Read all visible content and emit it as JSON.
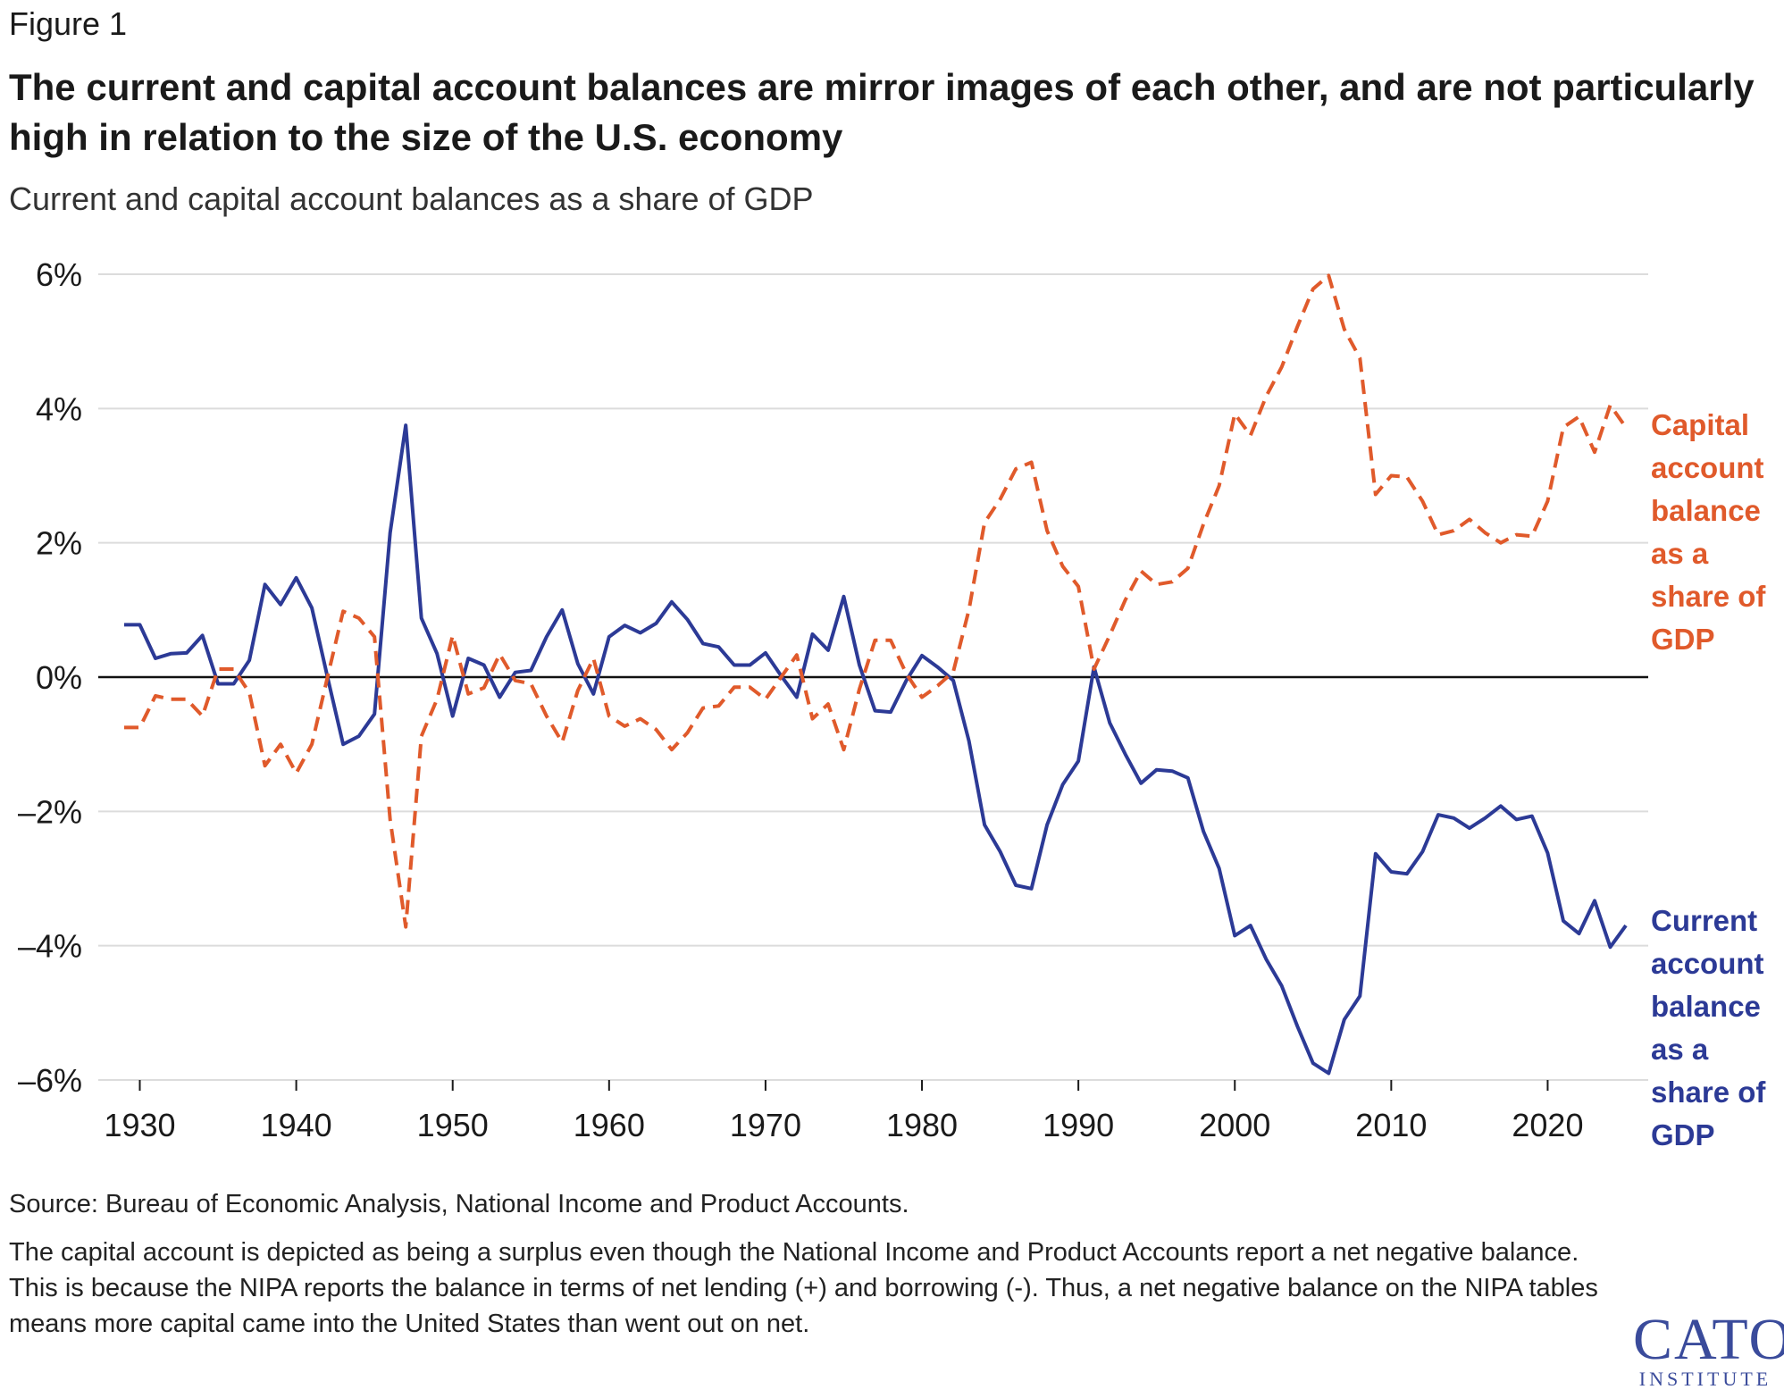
{
  "figure_label": "Figure 1",
  "title": "The current and capital account balances are mirror images of each other, and are not particularly high in relation to the size of the U.S. economy",
  "subtitle": "Current and capital account balances as a share of GDP",
  "series_labels": {
    "capital": "Capital account balance as a share of GDP",
    "current": "Current account balance as a share of GDP"
  },
  "source": "Source: Bureau of Economic Analysis, National Income and Product Accounts.",
  "note": "The capital account is depicted as being a surplus even though the National Income and Product Accounts report a net negative balance. This is because the NIPA reports the balance in terms of net lending (+) and borrowing (-). Thus, a net negative balance on the NIPA tables means more capital came into the United States than went out on net.",
  "logo": {
    "main": "CATO",
    "sub": "INSTITUTE"
  },
  "colors": {
    "capital": "#e05a2b",
    "current": "#2c3a96",
    "grid": "#dcdcdc",
    "zero": "#111111"
  },
  "chart_data": {
    "type": "line",
    "title": "The current and capital account balances are mirror images of each other, and are not particularly high in relation to the size of the U.S. economy",
    "subtitle": "Current and capital account balances as a share of GDP",
    "xlabel": "",
    "ylabel": "",
    "xlim": [
      1929,
      2025
    ],
    "ylim": [
      -6,
      6
    ],
    "x_ticks": [
      1930,
      1940,
      1950,
      1960,
      1970,
      1980,
      1990,
      2000,
      2010,
      2020
    ],
    "y_ticks": [
      6,
      4,
      2,
      0,
      -2,
      -4,
      -6
    ],
    "y_tick_labels": [
      "6%",
      "4%",
      "2%",
      "0%",
      "–2%",
      "–4%",
      "–6%"
    ],
    "grid": "horizontal",
    "series": [
      {
        "name": "Current account balance as a share of GDP",
        "key": "current",
        "style": "solid",
        "points": [
          [
            1929,
            0.78
          ],
          [
            1930,
            0.78
          ],
          [
            1931,
            0.28
          ],
          [
            1932,
            0.35
          ],
          [
            1933,
            0.36
          ],
          [
            1934,
            0.62
          ],
          [
            1935,
            -0.1
          ],
          [
            1936,
            -0.1
          ],
          [
            1937,
            0.25
          ],
          [
            1938,
            1.38
          ],
          [
            1939,
            1.08
          ],
          [
            1940,
            1.48
          ],
          [
            1941,
            1.03
          ],
          [
            1942,
            0.0
          ],
          [
            1943,
            -1.0
          ],
          [
            1944,
            -0.88
          ],
          [
            1945,
            -0.55
          ],
          [
            1946,
            2.15
          ],
          [
            1947,
            3.75
          ],
          [
            1948,
            0.88
          ],
          [
            1949,
            0.35
          ],
          [
            1950,
            -0.58
          ],
          [
            1951,
            0.28
          ],
          [
            1952,
            0.18
          ],
          [
            1953,
            -0.3
          ],
          [
            1954,
            0.07
          ],
          [
            1955,
            0.1
          ],
          [
            1956,
            0.6
          ],
          [
            1957,
            1.0
          ],
          [
            1958,
            0.2
          ],
          [
            1959,
            -0.25
          ],
          [
            1960,
            0.6
          ],
          [
            1961,
            0.77
          ],
          [
            1962,
            0.66
          ],
          [
            1963,
            0.8
          ],
          [
            1964,
            1.12
          ],
          [
            1965,
            0.86
          ],
          [
            1966,
            0.5
          ],
          [
            1967,
            0.45
          ],
          [
            1968,
            0.18
          ],
          [
            1969,
            0.18
          ],
          [
            1970,
            0.36
          ],
          [
            1971,
            0.02
          ],
          [
            1972,
            -0.3
          ],
          [
            1973,
            0.64
          ],
          [
            1974,
            0.4
          ],
          [
            1975,
            1.2
          ],
          [
            1976,
            0.18
          ],
          [
            1977,
            -0.5
          ],
          [
            1978,
            -0.52
          ],
          [
            1979,
            -0.05
          ],
          [
            1980,
            0.32
          ],
          [
            1981,
            0.15
          ],
          [
            1982,
            -0.05
          ],
          [
            1983,
            -0.95
          ],
          [
            1984,
            -2.2
          ],
          [
            1985,
            -2.6
          ],
          [
            1986,
            -3.1
          ],
          [
            1987,
            -3.15
          ],
          [
            1988,
            -2.2
          ],
          [
            1989,
            -1.6
          ],
          [
            1990,
            -1.25
          ],
          [
            1991,
            0.15
          ],
          [
            1992,
            -0.68
          ],
          [
            1993,
            -1.15
          ],
          [
            1994,
            -1.58
          ],
          [
            1995,
            -1.38
          ],
          [
            1996,
            -1.4
          ],
          [
            1997,
            -1.5
          ],
          [
            1998,
            -2.3
          ],
          [
            1999,
            -2.85
          ],
          [
            2000,
            -3.85
          ],
          [
            2001,
            -3.7
          ],
          [
            2002,
            -4.2
          ],
          [
            2003,
            -4.6
          ],
          [
            2004,
            -5.2
          ],
          [
            2005,
            -5.75
          ],
          [
            2006,
            -5.9
          ],
          [
            2007,
            -5.1
          ],
          [
            2008,
            -4.75
          ],
          [
            2009,
            -2.63
          ],
          [
            2010,
            -2.9
          ],
          [
            2011,
            -2.93
          ],
          [
            2012,
            -2.6
          ],
          [
            2013,
            -2.05
          ],
          [
            2014,
            -2.1
          ],
          [
            2015,
            -2.25
          ],
          [
            2016,
            -2.1
          ],
          [
            2017,
            -1.92
          ],
          [
            2018,
            -2.12
          ],
          [
            2019,
            -2.07
          ],
          [
            2020,
            -2.62
          ],
          [
            2021,
            -3.63
          ],
          [
            2022,
            -3.82
          ],
          [
            2023,
            -3.33
          ],
          [
            2024,
            -4.02
          ],
          [
            2025,
            -3.7
          ]
        ]
      },
      {
        "name": "Capital account balance as a share of GDP",
        "key": "capital",
        "style": "dashed",
        "points": [
          [
            1929,
            -0.75
          ],
          [
            1930,
            -0.75
          ],
          [
            1931,
            -0.28
          ],
          [
            1932,
            -0.33
          ],
          [
            1933,
            -0.33
          ],
          [
            1934,
            -0.58
          ],
          [
            1935,
            0.12
          ],
          [
            1936,
            0.12
          ],
          [
            1937,
            -0.23
          ],
          [
            1938,
            -1.32
          ],
          [
            1939,
            -1.0
          ],
          [
            1940,
            -1.43
          ],
          [
            1941,
            -1.0
          ],
          [
            1942,
            0.0
          ],
          [
            1943,
            0.98
          ],
          [
            1944,
            0.88
          ],
          [
            1945,
            0.6
          ],
          [
            1946,
            -2.12
          ],
          [
            1947,
            -3.72
          ],
          [
            1948,
            -0.88
          ],
          [
            1949,
            -0.33
          ],
          [
            1950,
            0.62
          ],
          [
            1951,
            -0.25
          ],
          [
            1952,
            -0.16
          ],
          [
            1953,
            0.34
          ],
          [
            1954,
            -0.05
          ],
          [
            1955,
            -0.1
          ],
          [
            1956,
            -0.58
          ],
          [
            1957,
            -0.97
          ],
          [
            1958,
            -0.2
          ],
          [
            1959,
            0.28
          ],
          [
            1960,
            -0.58
          ],
          [
            1961,
            -0.73
          ],
          [
            1962,
            -0.62
          ],
          [
            1963,
            -0.78
          ],
          [
            1964,
            -1.08
          ],
          [
            1965,
            -0.83
          ],
          [
            1966,
            -0.46
          ],
          [
            1967,
            -0.43
          ],
          [
            1968,
            -0.15
          ],
          [
            1969,
            -0.15
          ],
          [
            1970,
            -0.33
          ],
          [
            1971,
            0.0
          ],
          [
            1972,
            0.33
          ],
          [
            1973,
            -0.62
          ],
          [
            1974,
            -0.4
          ],
          [
            1975,
            -1.08
          ],
          [
            1976,
            -0.18
          ],
          [
            1977,
            0.55
          ],
          [
            1978,
            0.55
          ],
          [
            1979,
            0.05
          ],
          [
            1980,
            -0.3
          ],
          [
            1981,
            -0.13
          ],
          [
            1982,
            0.08
          ],
          [
            1983,
            1.0
          ],
          [
            1984,
            2.3
          ],
          [
            1985,
            2.65
          ],
          [
            1986,
            3.1
          ],
          [
            1987,
            3.2
          ],
          [
            1988,
            2.18
          ],
          [
            1989,
            1.65
          ],
          [
            1990,
            1.35
          ],
          [
            1991,
            0.12
          ],
          [
            1992,
            0.62
          ],
          [
            1993,
            1.15
          ],
          [
            1994,
            1.58
          ],
          [
            1995,
            1.38
          ],
          [
            1996,
            1.42
          ],
          [
            1997,
            1.62
          ],
          [
            1998,
            2.28
          ],
          [
            1999,
            2.85
          ],
          [
            2000,
            3.92
          ],
          [
            2001,
            3.6
          ],
          [
            2002,
            4.18
          ],
          [
            2003,
            4.62
          ],
          [
            2004,
            5.22
          ],
          [
            2005,
            5.78
          ],
          [
            2006,
            5.98
          ],
          [
            2007,
            5.18
          ],
          [
            2008,
            4.75
          ],
          [
            2009,
            2.72
          ],
          [
            2010,
            3.0
          ],
          [
            2011,
            2.98
          ],
          [
            2012,
            2.62
          ],
          [
            2013,
            2.12
          ],
          [
            2014,
            2.18
          ],
          [
            2015,
            2.35
          ],
          [
            2016,
            2.15
          ],
          [
            2017,
            2.0
          ],
          [
            2018,
            2.12
          ],
          [
            2019,
            2.1
          ],
          [
            2020,
            2.62
          ],
          [
            2021,
            3.72
          ],
          [
            2022,
            3.88
          ],
          [
            2023,
            3.35
          ],
          [
            2024,
            4.05
          ],
          [
            2025,
            3.72
          ]
        ]
      }
    ]
  }
}
